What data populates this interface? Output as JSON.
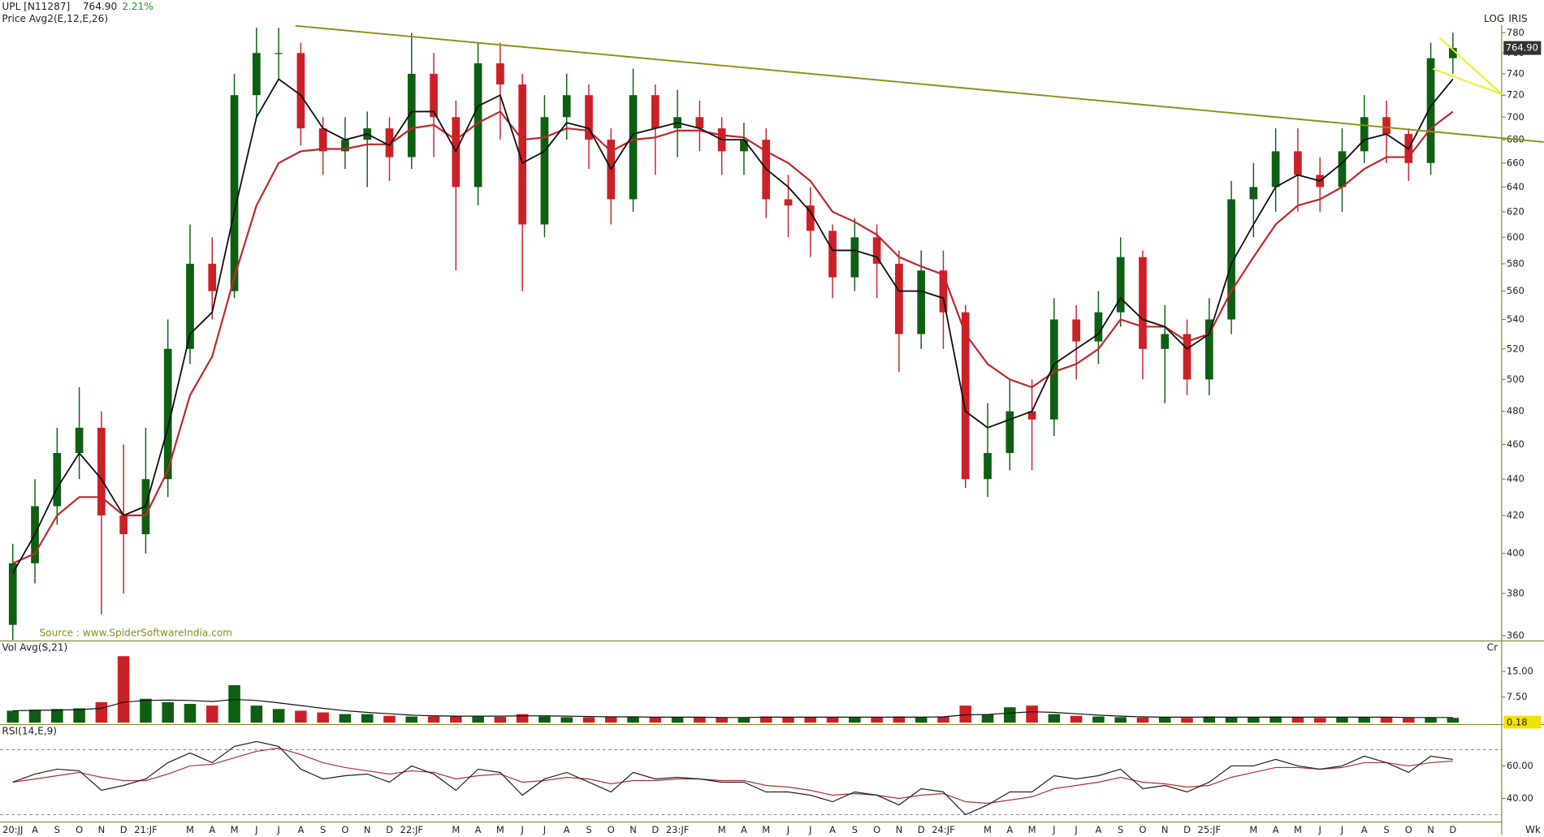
{
  "chart_data": {
    "type": "candlestick",
    "title": "UPL [N11287]",
    "price_text": "764.90",
    "change_text": "2.21%",
    "subtitle": "Price  Avg2(E,12,E,26)",
    "scale_label": "LOG",
    "brand": "IRIS",
    "source": "Source : www.SpiderSoftwareIndia.com",
    "period_label": "Wk",
    "log": true,
    "categories": [
      "20:JJ",
      "A",
      "S",
      "O",
      "N",
      "D",
      "21:JF",
      null,
      "M",
      "A",
      "M",
      "J",
      "J",
      "A",
      "S",
      "O",
      "N",
      "D",
      "22:JF",
      null,
      "M",
      "A",
      "M",
      "J",
      "J",
      "A",
      "S",
      "O",
      "N",
      "D",
      "23:JF",
      null,
      "M",
      "A",
      "M",
      "J",
      "J",
      "A",
      "S",
      "O",
      "N",
      "D",
      "24:JF",
      null,
      "M",
      "A",
      "M",
      "J",
      "J",
      "A",
      "S",
      "O",
      "N",
      "D",
      "25:JF",
      null,
      "M",
      "A",
      "M",
      "J",
      "J",
      "A",
      "S",
      "O",
      "N",
      "D"
    ],
    "up_color": "#0f5f12",
    "down_color": "#cc2027",
    "open": [
      365,
      395,
      425,
      455,
      470,
      420,
      410,
      440,
      520,
      580,
      560,
      720,
      760,
      760,
      690,
      670,
      680,
      690,
      665,
      740,
      700,
      640,
      750,
      730,
      610,
      700,
      720,
      680,
      630,
      720,
      690,
      700,
      690,
      670,
      680,
      630,
      625,
      605,
      570,
      600,
      580,
      530,
      575,
      545,
      440,
      455,
      480,
      475,
      540,
      525,
      545,
      585,
      520,
      530,
      500,
      540,
      630,
      640,
      670,
      650,
      640,
      670,
      700,
      685,
      660,
      755
    ],
    "high": [
      405,
      440,
      470,
      495,
      480,
      460,
      470,
      540,
      610,
      600,
      740,
      785,
      785,
      770,
      700,
      700,
      705,
      700,
      780,
      760,
      715,
      770,
      770,
      740,
      720,
      740,
      730,
      690,
      745,
      730,
      725,
      715,
      700,
      695,
      690,
      650,
      640,
      610,
      615,
      610,
      590,
      590,
      590,
      550,
      485,
      500,
      500,
      555,
      550,
      560,
      600,
      590,
      550,
      540,
      555,
      645,
      660,
      690,
      690,
      665,
      690,
      720,
      715,
      690,
      770,
      780
    ],
    "low": [
      358,
      385,
      415,
      440,
      370,
      380,
      400,
      430,
      510,
      540,
      555,
      700,
      735,
      675,
      650,
      655,
      640,
      645,
      655,
      665,
      575,
      625,
      680,
      560,
      600,
      680,
      655,
      610,
      620,
      650,
      665,
      670,
      650,
      650,
      615,
      600,
      585,
      555,
      560,
      555,
      505,
      520,
      520,
      435,
      430,
      445,
      445,
      465,
      500,
      510,
      535,
      500,
      485,
      490,
      490,
      530,
      600,
      620,
      620,
      620,
      620,
      660,
      660,
      645,
      650,
      740
    ],
    "close": [
      395,
      425,
      455,
      470,
      420,
      410,
      440,
      520,
      580,
      560,
      720,
      760,
      760,
      690,
      670,
      680,
      690,
      665,
      740,
      700,
      640,
      750,
      730,
      610,
      700,
      720,
      680,
      630,
      720,
      690,
      700,
      690,
      670,
      680,
      630,
      625,
      605,
      570,
      600,
      580,
      530,
      575,
      545,
      440,
      455,
      480,
      475,
      540,
      525,
      545,
      585,
      520,
      530,
      500,
      540,
      630,
      640,
      670,
      650,
      640,
      670,
      700,
      685,
      660,
      755,
      764.9
    ],
    "ema_fast": {
      "color": "#111111",
      "values": [
        390,
        410,
        435,
        455,
        440,
        420,
        425,
        470,
        530,
        545,
        620,
        700,
        735,
        720,
        690,
        680,
        685,
        675,
        705,
        705,
        670,
        710,
        720,
        660,
        670,
        695,
        690,
        655,
        685,
        690,
        695,
        690,
        680,
        680,
        655,
        640,
        620,
        590,
        590,
        585,
        560,
        560,
        555,
        480,
        470,
        475,
        480,
        510,
        520,
        530,
        555,
        540,
        535,
        520,
        530,
        580,
        610,
        640,
        650,
        645,
        660,
        680,
        685,
        672,
        710,
        735
      ]
    },
    "ema_slow": {
      "color": "#c0262c",
      "values": [
        395,
        400,
        420,
        430,
        430,
        420,
        420,
        445,
        490,
        515,
        570,
        625,
        660,
        670,
        672,
        672,
        676,
        676,
        690,
        693,
        680,
        695,
        705,
        680,
        682,
        690,
        688,
        670,
        680,
        682,
        688,
        688,
        684,
        682,
        670,
        660,
        645,
        620,
        612,
        602,
        585,
        578,
        572,
        530,
        510,
        500,
        495,
        505,
        510,
        520,
        540,
        535,
        535,
        525,
        530,
        560,
        585,
        610,
        625,
        630,
        640,
        655,
        665,
        665,
        690,
        705
      ]
    },
    "ylim": [
      358,
      788
    ],
    "yticks": [
      360,
      380,
      400,
      420,
      440,
      460,
      480,
      500,
      520,
      540,
      560,
      580,
      600,
      620,
      640,
      660,
      680,
      700,
      720,
      740,
      760,
      780
    ],
    "trendlines": [
      {
        "color": "#8f8f14",
        "x": [
          12.76,
          69.1
        ],
        "y": [
          787,
          678
        ]
      },
      {
        "color": "#eeee22",
        "x": [
          64.4,
          67.2
        ],
        "y": [
          775,
          721
        ]
      },
      {
        "color": "#eeee22",
        "x": [
          64.1,
          67.2
        ],
        "y": [
          744.7,
          721
        ]
      }
    ],
    "volume": {
      "title": "Vol  Avg(S,21)",
      "unit": "Cr",
      "last_label": "0.18",
      "values": [
        3.5,
        3.8,
        4,
        4.2,
        6,
        19.5,
        7,
        6,
        5.5,
        5,
        11,
        5,
        4,
        3.5,
        3,
        2.5,
        2.5,
        2,
        1.8,
        1.8,
        2,
        1.8,
        1.7,
        2.5,
        1.8,
        1.6,
        1.6,
        1.8,
        1.6,
        1.5,
        1.6,
        1.5,
        1.5,
        1.4,
        1.8,
        1.5,
        1.5,
        1.6,
        1.5,
        1.5,
        1.8,
        1.6,
        1.8,
        5,
        2.5,
        4.5,
        5,
        2.5,
        2,
        1.8,
        1.6,
        1.5,
        1.6,
        1.4,
        1.8,
        1.6,
        1.5,
        1.8,
        1.6,
        1.4,
        1.6,
        1.5,
        1.6,
        1.4,
        1.5,
        1.4
      ],
      "avg": [
        3.5,
        3.6,
        3.7,
        3.8,
        4.2,
        6,
        6.5,
        6.6,
        6.5,
        6.2,
        6.8,
        6.5,
        5.8,
        5,
        4.2,
        3.5,
        3,
        2.6,
        2.2,
        2,
        1.9,
        1.9,
        1.9,
        2,
        2,
        1.9,
        1.8,
        1.7,
        1.7,
        1.6,
        1.6,
        1.6,
        1.5,
        1.5,
        1.6,
        1.6,
        1.6,
        1.6,
        1.6,
        1.6,
        1.6,
        1.6,
        1.7,
        2.3,
        2.4,
        2.8,
        3.2,
        3,
        2.6,
        2.2,
        1.9,
        1.7,
        1.6,
        1.6,
        1.6,
        1.6,
        1.6,
        1.6,
        1.6,
        1.6,
        1.6,
        1.6,
        1.6,
        1.5,
        1.5,
        1.5
      ],
      "avg_color": "#111111",
      "ylim": [
        0,
        20.5
      ],
      "yticks": [
        {
          "value": 7.5,
          "label": "7.50"
        },
        {
          "value": 15,
          "label": "15.00"
        }
      ]
    },
    "rsi": {
      "title": "RSI(14,E,9)",
      "values": [
        50,
        55,
        58,
        57,
        45,
        48,
        52,
        62,
        68,
        62,
        72,
        75,
        72,
        58,
        52,
        54,
        55,
        50,
        60,
        55,
        45,
        58,
        56,
        42,
        52,
        56,
        50,
        44,
        56,
        52,
        53,
        52,
        50,
        50,
        44,
        44,
        42,
        38,
        44,
        42,
        36,
        46,
        44,
        30,
        36,
        44,
        44,
        54,
        52,
        54,
        58,
        46,
        48,
        44,
        50,
        60,
        60,
        64,
        60,
        58,
        60,
        66,
        62,
        56,
        66,
        64
      ],
      "signal": [
        50,
        52,
        54,
        56,
        53,
        51,
        51,
        55,
        60,
        61,
        65,
        69,
        71,
        67,
        62,
        59,
        57,
        55,
        57,
        56,
        52,
        54,
        55,
        50,
        51,
        53,
        52,
        49,
        51,
        51,
        52,
        52,
        51,
        51,
        48,
        47,
        45,
        42,
        43,
        42,
        40,
        42,
        43,
        38,
        37,
        39,
        41,
        46,
        48,
        50,
        53,
        50,
        49,
        47,
        48,
        53,
        56,
        59,
        59,
        58,
        59,
        62,
        62,
        60,
        62,
        63
      ],
      "color": "#222222",
      "signal_color": "#b0303a",
      "ylim": [
        25.5,
        84.8
      ],
      "yticks": [
        {
          "value": 40,
          "label": "40.00"
        },
        {
          "value": 60,
          "label": "60.00"
        }
      ],
      "levels": [
        70,
        30
      ]
    }
  }
}
